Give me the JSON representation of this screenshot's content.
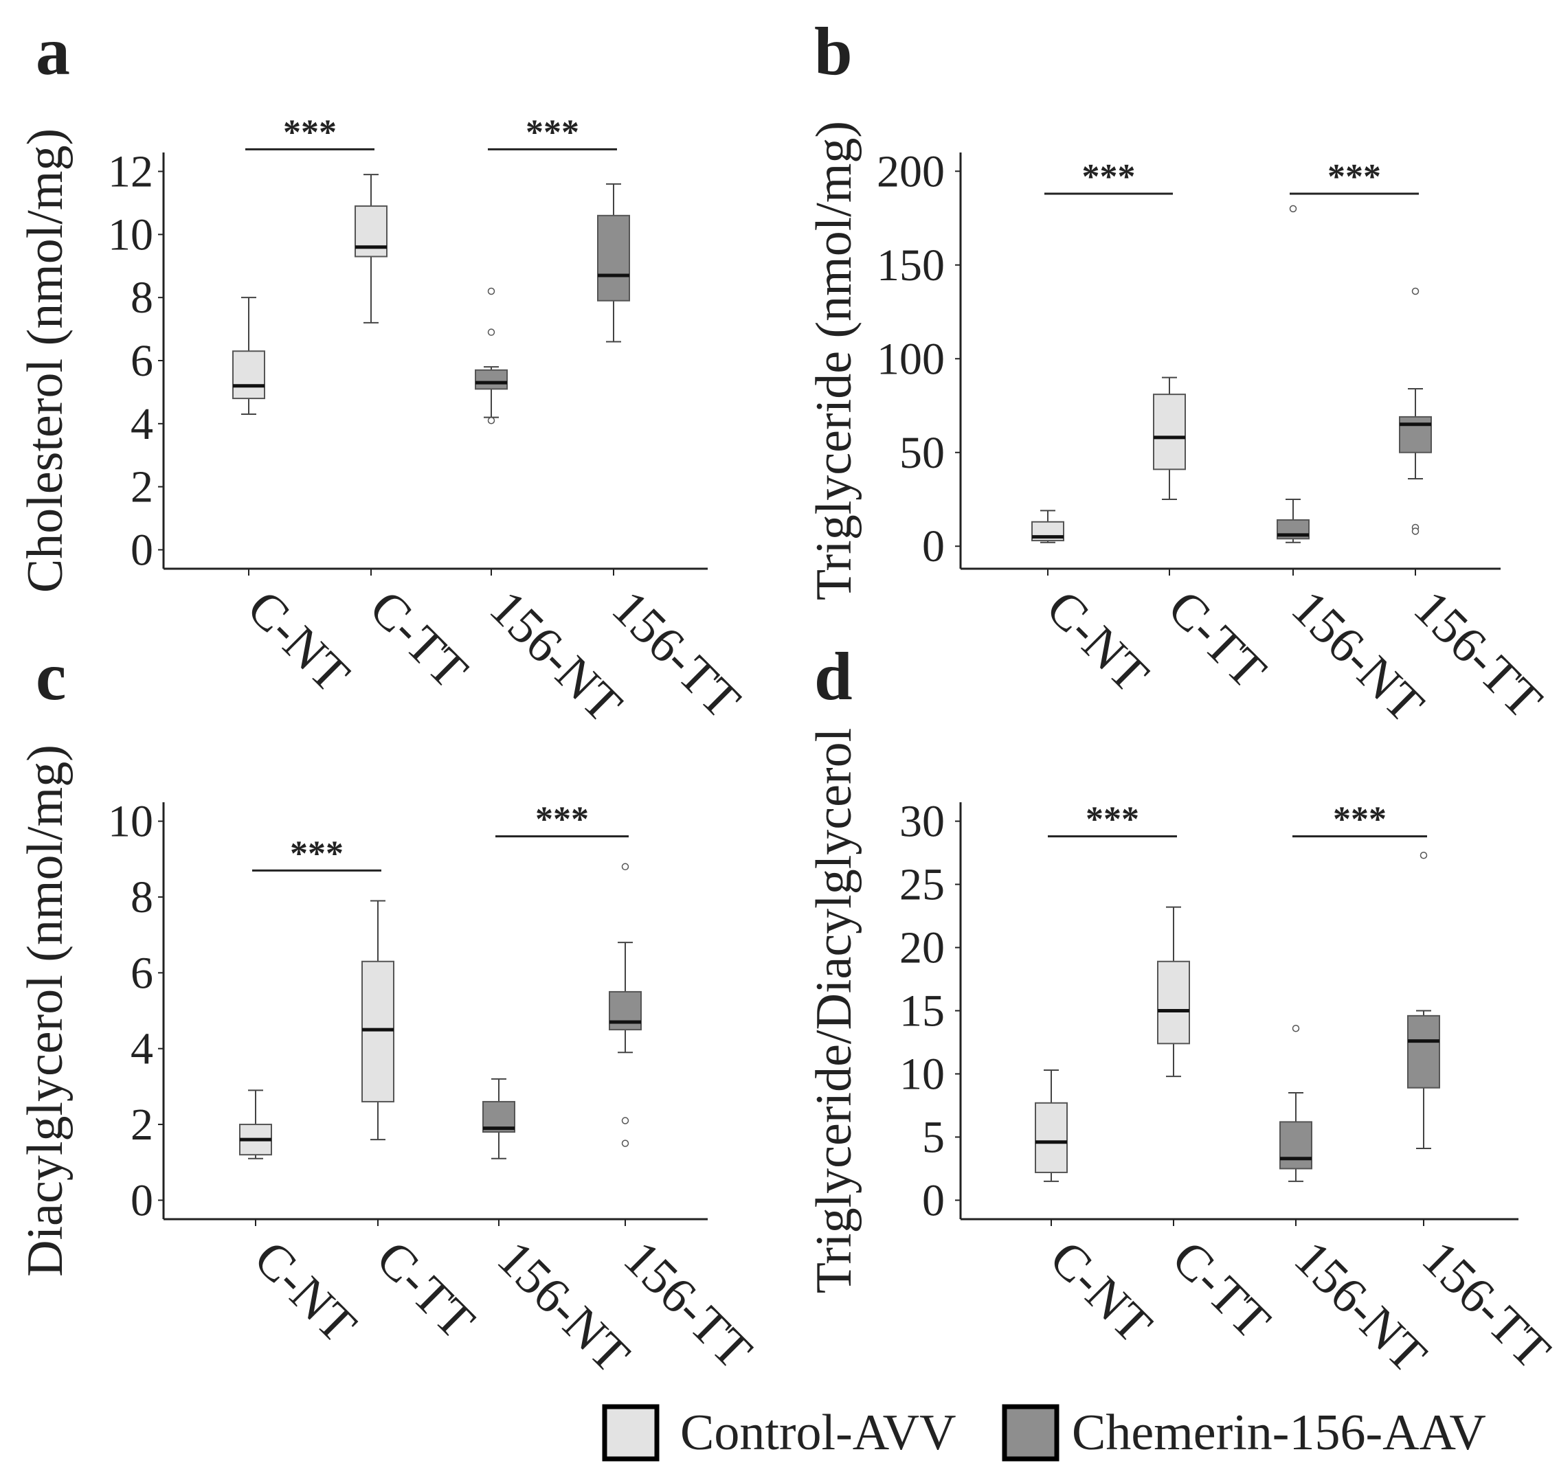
{
  "figure": {
    "legend": {
      "items": [
        {
          "label": "Control-AVV",
          "color": "#e3e3e3"
        },
        {
          "label": "Chemerin-156-AAV",
          "color": "#8e8e8e"
        }
      ]
    }
  },
  "chart_data": [
    {
      "panel": "a",
      "type": "boxplot",
      "ylabel": "Cholesterol (nmol/mg)",
      "ylim": [
        -0.6,
        12.6
      ],
      "yticks": [
        0,
        2,
        4,
        6,
        8,
        10,
        12
      ],
      "categories": [
        "C-NT",
        "C-TT",
        "156-NT",
        "156-TT"
      ],
      "groups": [
        "Control-AVV",
        "Control-AVV",
        "Chemerin-156-AAV",
        "Chemerin-156-AAV"
      ],
      "boxes": [
        {
          "min": 4.3,
          "q1": 4.8,
          "median": 5.2,
          "q3": 6.3,
          "max": 8.0,
          "outliers": []
        },
        {
          "min": 7.2,
          "q1": 9.3,
          "median": 9.6,
          "q3": 10.9,
          "max": 11.9,
          "outliers": []
        },
        {
          "min": 4.2,
          "q1": 5.1,
          "median": 5.3,
          "q3": 5.7,
          "max": 5.8,
          "outliers": [
            6.9,
            8.2,
            4.1
          ]
        },
        {
          "min": 6.6,
          "q1": 7.9,
          "median": 8.7,
          "q3": 10.6,
          "max": 11.6,
          "outliers": []
        }
      ],
      "significance": [
        {
          "from": "C-NT",
          "to": "C-TT",
          "label": "***",
          "y": 12.7
        },
        {
          "from": "156-NT",
          "to": "156-TT",
          "label": "***",
          "y": 12.7
        }
      ]
    },
    {
      "panel": "b",
      "type": "boxplot",
      "ylabel": "Triglyceride (nmol/mg)",
      "ylim": [
        -12,
        210
      ],
      "yticks": [
        0,
        50,
        100,
        150,
        200
      ],
      "categories": [
        "C-NT",
        "C-TT",
        "156-NT",
        "156-TT"
      ],
      "groups": [
        "Control-AVV",
        "Control-AVV",
        "Chemerin-156-AAV",
        "Chemerin-156-AAV"
      ],
      "boxes": [
        {
          "min": 2,
          "q1": 3,
          "median": 5,
          "q3": 13,
          "max": 19,
          "outliers": []
        },
        {
          "min": 25,
          "q1": 41,
          "median": 58,
          "q3": 81,
          "max": 90,
          "outliers": []
        },
        {
          "min": 2,
          "q1": 4,
          "median": 6,
          "q3": 14,
          "max": 25,
          "outliers": [
            180
          ]
        },
        {
          "min": 36,
          "q1": 50,
          "median": 65,
          "q3": 69,
          "max": 84,
          "outliers": [
            136,
            10,
            8
          ]
        }
      ],
      "significance": [
        {
          "from": "C-NT",
          "to": "C-TT",
          "label": "***",
          "y": 188
        },
        {
          "from": "156-NT",
          "to": "156-TT",
          "label": "***",
          "y": 188
        }
      ]
    },
    {
      "panel": "c",
      "type": "boxplot",
      "ylabel": "Diacylglycerol (nmol/mg)",
      "ylim": [
        -0.5,
        10.5
      ],
      "yticks": [
        0,
        2,
        4,
        6,
        8,
        10
      ],
      "categories": [
        "C-NT",
        "C-TT",
        "156-NT",
        "156-TT"
      ],
      "groups": [
        "Control-AVV",
        "Control-AVV",
        "Chemerin-156-AAV",
        "Chemerin-156-AAV"
      ],
      "boxes": [
        {
          "min": 1.1,
          "q1": 1.2,
          "median": 1.6,
          "q3": 2.0,
          "max": 2.9,
          "outliers": []
        },
        {
          "min": 1.6,
          "q1": 2.6,
          "median": 4.5,
          "q3": 6.3,
          "max": 7.9,
          "outliers": []
        },
        {
          "min": 1.1,
          "q1": 1.8,
          "median": 1.9,
          "q3": 2.6,
          "max": 3.2,
          "outliers": []
        },
        {
          "min": 3.9,
          "q1": 4.5,
          "median": 4.7,
          "q3": 5.5,
          "max": 6.8,
          "outliers": [
            8.8,
            2.1,
            1.5
          ]
        }
      ],
      "significance": [
        {
          "from": "C-NT",
          "to": "C-TT",
          "label": "***",
          "y": 8.7
        },
        {
          "from": "156-NT",
          "to": "156-TT",
          "label": "***",
          "y": 9.6
        }
      ]
    },
    {
      "panel": "d",
      "type": "boxplot",
      "ylabel": "Triglyceride/Diacylglycerol",
      "ylim": [
        -1.5,
        31.5
      ],
      "yticks": [
        0,
        5,
        10,
        15,
        20,
        25,
        30
      ],
      "categories": [
        "C-NT",
        "C-TT",
        "156-NT",
        "156-TT"
      ],
      "groups": [
        "Control-AVV",
        "Control-AVV",
        "Chemerin-156-AAV",
        "Chemerin-156-AAV"
      ],
      "boxes": [
        {
          "min": 1.5,
          "q1": 2.2,
          "median": 4.6,
          "q3": 7.7,
          "max": 10.3,
          "outliers": []
        },
        {
          "min": 9.8,
          "q1": 12.4,
          "median": 15.0,
          "q3": 18.9,
          "max": 23.2,
          "outliers": []
        },
        {
          "min": 1.5,
          "q1": 2.5,
          "median": 3.3,
          "q3": 6.2,
          "max": 8.5,
          "outliers": [
            13.6
          ]
        },
        {
          "min": 4.1,
          "q1": 8.9,
          "median": 12.6,
          "q3": 14.6,
          "max": 15.0,
          "outliers": [
            27.3
          ]
        }
      ],
      "significance": [
        {
          "from": "C-NT",
          "to": "C-TT",
          "label": "***",
          "y": 28.8
        },
        {
          "from": "156-NT",
          "to": "156-TT",
          "label": "***",
          "y": 28.8
        }
      ]
    }
  ]
}
